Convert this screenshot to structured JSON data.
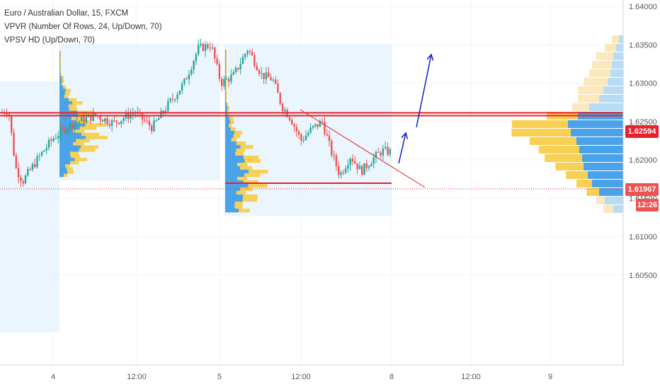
{
  "legend": {
    "symbol": "Euro / Australian Dollar, 15, FXCM",
    "vpvr": "VPVR (Number Of Rows, 24, Up/Down, 70)",
    "vpsv": "VPSV HD (Up/Down, 70)"
  },
  "price_axis": {
    "ticks": [
      "1.64000",
      "1.63500",
      "1.63000",
      "1.62500",
      "1.62000",
      "1.61500",
      "1.61000",
      "1.60500"
    ],
    "level_label": "1.62594",
    "current_price": "1.61967",
    "countdown": "12:26"
  },
  "time_axis": {
    "ticks": [
      "4",
      "12:00",
      "5",
      "12:00",
      "8",
      "12:00",
      "9"
    ]
  },
  "colors": {
    "up_candle": "#26a69a",
    "down_candle": "#ef5350",
    "level_line": "#e8202a",
    "arrow": "#1020c0",
    "volume_up": "#4aa3e8",
    "volume_down": "#f7d054"
  },
  "chart_data": {
    "type": "candlestick",
    "symbol": "EURAUD",
    "timeframe": "15",
    "ylim": [
      1.6025,
      1.641
    ],
    "horizontal_levels": [
      1.62594,
      1.6202
    ],
    "current_price": 1.61967
  }
}
